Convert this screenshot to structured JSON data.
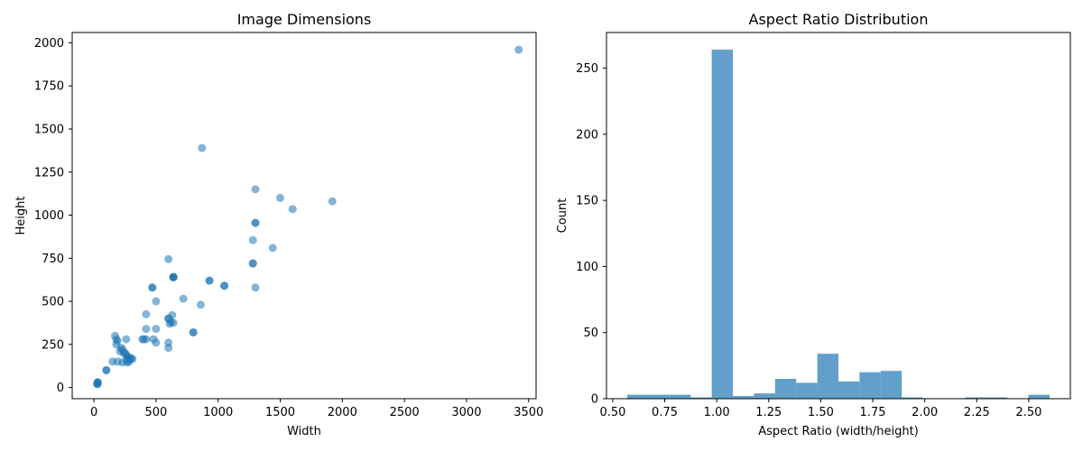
{
  "chart_data": [
    {
      "type": "scatter",
      "title": "Image Dimensions",
      "xlabel": "Width",
      "ylabel": "Height",
      "xlim": [
        -175,
        3560
      ],
      "ylim": [
        -65,
        2060
      ],
      "xticks": [
        0,
        500,
        1000,
        1500,
        2000,
        2500,
        3000,
        3500
      ],
      "yticks": [
        0,
        250,
        500,
        750,
        1000,
        1250,
        1500,
        1750,
        2000
      ],
      "grid": false,
      "marker_color": "#1f77b4",
      "marker_alpha": 0.55,
      "points": [
        [
          3420,
          1960
        ],
        [
          870,
          1390
        ],
        [
          1300,
          1150
        ],
        [
          1500,
          1100
        ],
        [
          1920,
          1080
        ],
        [
          1600,
          1035
        ],
        [
          1300,
          955
        ],
        [
          1300,
          955
        ],
        [
          1280,
          855
        ],
        [
          1440,
          810
        ],
        [
          600,
          745
        ],
        [
          1280,
          720
        ],
        [
          1280,
          720
        ],
        [
          640,
          640
        ],
        [
          640,
          640
        ],
        [
          640,
          640
        ],
        [
          640,
          640
        ],
        [
          930,
          620
        ],
        [
          930,
          620
        ],
        [
          1050,
          590
        ],
        [
          1050,
          590
        ],
        [
          470,
          580
        ],
        [
          470,
          580
        ],
        [
          1300,
          580
        ],
        [
          720,
          515
        ],
        [
          500,
          500
        ],
        [
          860,
          480
        ],
        [
          420,
          425
        ],
        [
          630,
          420
        ],
        [
          600,
          400
        ],
        [
          600,
          400
        ],
        [
          620,
          380
        ],
        [
          640,
          375
        ],
        [
          610,
          370
        ],
        [
          420,
          340
        ],
        [
          500,
          340
        ],
        [
          800,
          320
        ],
        [
          800,
          320
        ],
        [
          170,
          300
        ],
        [
          180,
          280
        ],
        [
          260,
          280
        ],
        [
          390,
          280
        ],
        [
          400,
          280
        ],
        [
          420,
          280
        ],
        [
          480,
          280
        ],
        [
          190,
          270
        ],
        [
          600,
          260
        ],
        [
          500,
          260
        ],
        [
          180,
          250
        ],
        [
          600,
          230
        ],
        [
          220,
          230
        ],
        [
          230,
          220
        ],
        [
          210,
          210
        ],
        [
          250,
          200
        ],
        [
          240,
          200
        ],
        [
          260,
          190
        ],
        [
          270,
          180
        ],
        [
          280,
          175
        ],
        [
          300,
          170
        ],
        [
          290,
          165
        ],
        [
          310,
          165
        ],
        [
          260,
          160
        ],
        [
          150,
          150
        ],
        [
          190,
          150
        ],
        [
          230,
          145
        ],
        [
          270,
          145
        ],
        [
          280,
          150
        ],
        [
          100,
          100
        ],
        [
          100,
          100
        ],
        [
          30,
          30
        ],
        [
          30,
          30
        ],
        [
          30,
          25
        ],
        [
          25,
          20
        ],
        [
          30,
          20
        ]
      ]
    },
    {
      "type": "bar",
      "title": "Aspect Ratio Distribution",
      "xlabel": "Aspect Ratio (width/height)",
      "ylabel": "Count",
      "xlim": [
        0.47,
        2.7
      ],
      "ylim": [
        0,
        277
      ],
      "xticks": [
        "0.50",
        "0.75",
        "1.00",
        "1.25",
        "1.50",
        "1.75",
        "2.00",
        "2.25",
        "2.50"
      ],
      "yticks": [
        0,
        50,
        100,
        150,
        200,
        250
      ],
      "grid": false,
      "bar_color": "#1f77b4",
      "bar_alpha": 0.7,
      "bin_edges": [
        0.57,
        0.6715,
        0.773,
        0.8745,
        0.976,
        1.0775,
        1.179,
        1.2805,
        1.382,
        1.4835,
        1.585,
        1.6865,
        1.788,
        1.8895,
        1.991,
        2.0925,
        2.194,
        2.2955,
        2.397,
        2.4985,
        2.6
      ],
      "counts": [
        3,
        3,
        3,
        1,
        264,
        2,
        4,
        15,
        12,
        34,
        13,
        20,
        21,
        1,
        0,
        0,
        1,
        1,
        0,
        3
      ]
    }
  ]
}
